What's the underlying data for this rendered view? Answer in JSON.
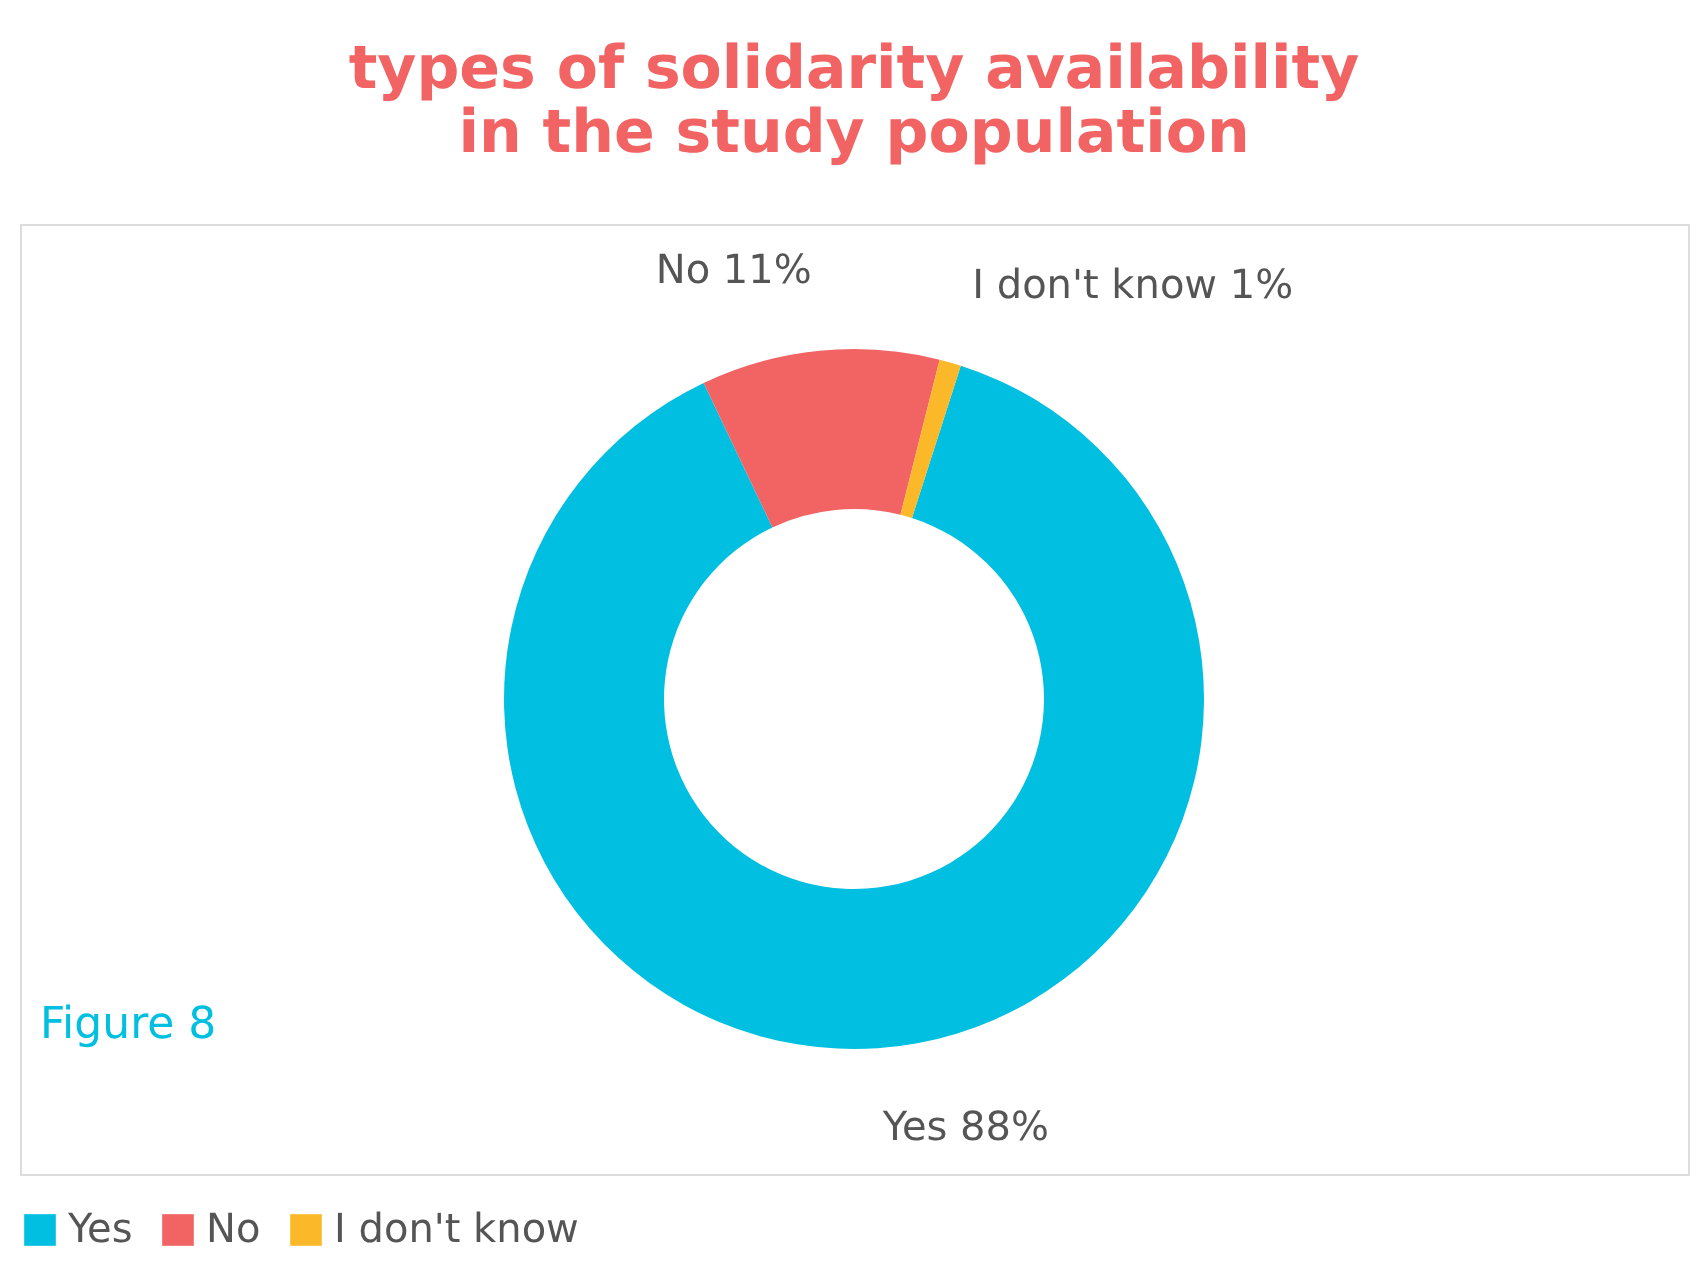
{
  "chart_data": {
    "type": "donut",
    "title": [
      "types of solidarity availability",
      "in the study population"
    ],
    "categories": [
      "Yes",
      "No",
      "I don't know"
    ],
    "values": [
      88,
      11,
      1
    ],
    "colors": [
      "#00bfe0",
      "#f26464",
      "#fbb829"
    ],
    "value_labels": [
      "Yes 88%",
      "No 11%",
      "I don't know 1%"
    ],
    "legend": "bottom",
    "annotations": [
      "Figure  8"
    ]
  }
}
